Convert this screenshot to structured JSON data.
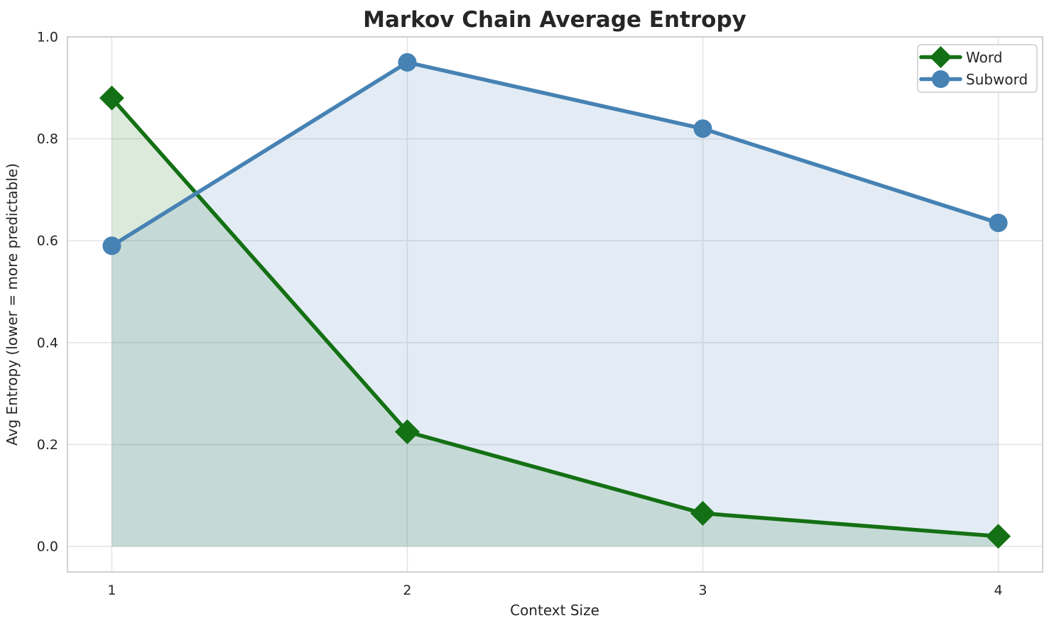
{
  "chart_data": {
    "type": "line",
    "title": "Markov Chain Average Entropy",
    "xlabel": "Context Size",
    "ylabel": "Avg Entropy (lower = more predictable)",
    "x": [
      1,
      2,
      3,
      4
    ],
    "series": [
      {
        "name": "Word",
        "color": "#147014",
        "marker": "diamond",
        "values": [
          0.88,
          0.225,
          0.065,
          0.02
        ],
        "area_fill": true,
        "fill_opacity": 0.15
      },
      {
        "name": "Subword",
        "color": "#4682b4",
        "marker": "circle",
        "values": [
          0.59,
          0.95,
          0.82,
          0.635
        ],
        "area_fill": true,
        "fill_opacity": 0.15
      }
    ],
    "area_baseline": 0,
    "xlim": [
      0.85,
      4.15
    ],
    "ylim": [
      -0.05,
      1.0
    ],
    "xticks": {
      "values": [
        1,
        2,
        3,
        4
      ],
      "labels": [
        "1",
        "2",
        "3",
        "4"
      ]
    },
    "yticks": {
      "values": [
        0,
        0.2,
        0.4,
        0.6,
        0.8,
        1.0
      ],
      "labels": [
        "0.0",
        "0.2",
        "0.4",
        "0.6",
        "0.8",
        "1.0"
      ]
    },
    "grid": true,
    "legend_position": "top-right",
    "colors": {
      "grid": "#e4e4e4",
      "spine": "#cccccc",
      "text": "#262626",
      "background": "#ffffff"
    }
  }
}
